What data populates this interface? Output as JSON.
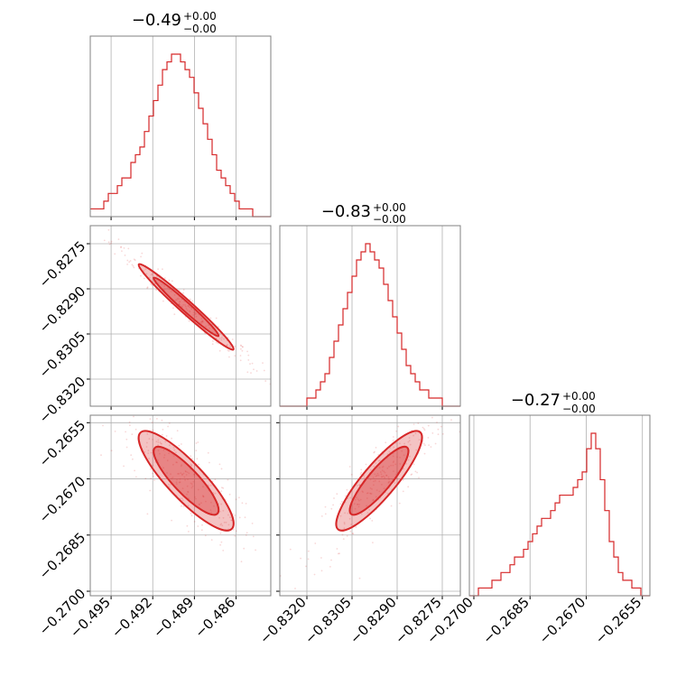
{
  "colors": {
    "accent": "#d62728",
    "grid": "#b0b0b0",
    "frame": "#808080"
  },
  "chart_data": {
    "type": "corner",
    "parameters": [
      "p0",
      "p1",
      "p2"
    ],
    "grid": true,
    "ranges": [
      [
        -0.4965,
        -0.4835
      ],
      [
        -0.8329,
        -0.8269
      ],
      [
        -0.27012,
        -0.2653
      ]
    ],
    "titles": [
      {
        "median": "−0.49",
        "plus": "+0.00",
        "minus": "−0.00"
      },
      {
        "median": "−0.83",
        "plus": "+0.00",
        "minus": "−0.00"
      },
      {
        "median": "−0.27",
        "plus": "+0.00",
        "minus": "−0.00"
      }
    ],
    "ticks": {
      "x0": [
        {
          "v": -0.495,
          "label": "−0.495"
        },
        {
          "v": -0.492,
          "label": "−0.492"
        },
        {
          "v": -0.489,
          "label": "−0.489"
        },
        {
          "v": -0.486,
          "label": "−0.486"
        }
      ],
      "x1": [
        {
          "v": -0.832,
          "label": "−0.8320"
        },
        {
          "v": -0.8305,
          "label": "−0.8305"
        },
        {
          "v": -0.829,
          "label": "−0.8290"
        },
        {
          "v": -0.8275,
          "label": "−0.8275"
        }
      ],
      "x2": [
        {
          "v": -0.27,
          "label": "−0.2700"
        },
        {
          "v": -0.2685,
          "label": "−0.2685"
        },
        {
          "v": -0.267,
          "label": "−0.2670"
        },
        {
          "v": -0.2655,
          "label": "−0.2655"
        }
      ],
      "y1": [
        {
          "v": -0.8275,
          "label": "−0.8275"
        },
        {
          "v": -0.829,
          "label": "−0.8290"
        },
        {
          "v": -0.8305,
          "label": "−0.8305"
        },
        {
          "v": -0.832,
          "label": "−0.8320"
        }
      ],
      "y2": [
        {
          "v": -0.2655,
          "label": "−0.2655"
        },
        {
          "v": -0.267,
          "label": "−0.2670"
        },
        {
          "v": -0.2685,
          "label": "−0.2685"
        },
        {
          "v": -0.27,
          "label": "−0.2700"
        }
      ]
    },
    "histograms": [
      {
        "param": 0,
        "counts": [
          1,
          1,
          1,
          2,
          3,
          3,
          4,
          5,
          5,
          7,
          8,
          9,
          11,
          13,
          15,
          17,
          19,
          20,
          21,
          21,
          20,
          19,
          18,
          16,
          14,
          12,
          10,
          8,
          6,
          5,
          4,
          3,
          2,
          1,
          1,
          1,
          0,
          0,
          0,
          0
        ]
      },
      {
        "param": 1,
        "counts": [
          0,
          0,
          0,
          0,
          0,
          0,
          1,
          1,
          2,
          3,
          4,
          6,
          8,
          10,
          12,
          14,
          16,
          18,
          19,
          20,
          19,
          18,
          17,
          15,
          13,
          11,
          9,
          7,
          5,
          4,
          3,
          2,
          2,
          1,
          1,
          1,
          0,
          0,
          0,
          0
        ]
      },
      {
        "param": 2,
        "counts": [
          0,
          0,
          1,
          1,
          1,
          2,
          2,
          3,
          3,
          4,
          5,
          5,
          6,
          7,
          8,
          9,
          10,
          10,
          11,
          12,
          13,
          13,
          13,
          14,
          15,
          16,
          19,
          21,
          19,
          15,
          11,
          7,
          5,
          3,
          2,
          2,
          1,
          1,
          0,
          0
        ]
      }
    ],
    "joint": [
      {
        "x": 0,
        "y": 1,
        "x_mean": -0.4896,
        "y_mean": -0.8296,
        "x_sd": 0.0018,
        "y_sd": 0.00075,
        "corr": -0.98
      },
      {
        "x": 0,
        "y": 2,
        "x_mean": -0.4896,
        "y_mean": -0.26705,
        "x_sd": 0.0018,
        "y_sd": 0.0007,
        "corr": -0.86
      },
      {
        "x": 1,
        "y": 2,
        "x_mean": -0.8296,
        "y_mean": -0.26705,
        "x_sd": 0.00075,
        "y_sd": 0.0007,
        "corr": 0.87
      }
    ]
  }
}
